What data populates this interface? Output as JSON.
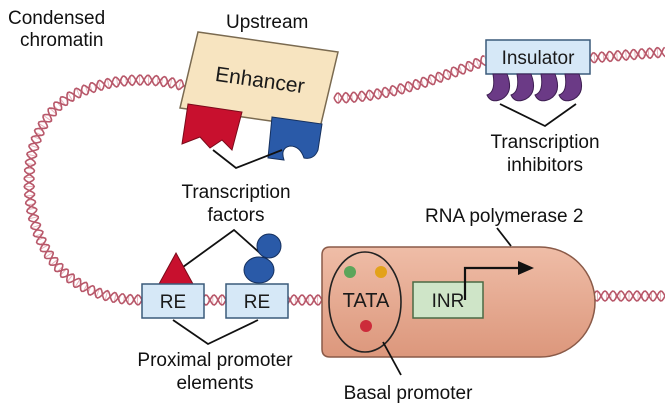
{
  "labels": {
    "condensed_chromatin_line1": "Condensed",
    "condensed_chromatin_line2": "chromatin",
    "upstream": "Upstream",
    "transcription_factors_line1": "Transcription",
    "transcription_factors_line2": "factors",
    "transcription_inhibitors_line1": "Transcription",
    "transcription_inhibitors_line2": "inhibitors",
    "rna_polymerase": "RNA polymerase 2",
    "proximal_promoter_line1": "Proximal promoter",
    "proximal_promoter_line2": "elements",
    "basal_promoter": "Basal promoter"
  },
  "boxes": {
    "enhancer": "Enhancer",
    "insulator": "Insulator",
    "re_left": "RE",
    "re_right": "RE",
    "tata": "TATA",
    "inr": "INR"
  },
  "colors": {
    "dna_strand": "#b8586a",
    "dna_rung": "#e8b3bc",
    "enhancer_fill": "#f7e4c0",
    "element_box_fill": "#d6e8f7",
    "inr_fill": "#cfe5c8",
    "polymerase_fill": "#e7a98f",
    "red_factor": "#c8102e",
    "blue_factor": "#2a5aa8",
    "inhibitor": "#6b3a86",
    "dot_green": "#5ca55a",
    "dot_orange": "#e3a21a",
    "dot_red": "#cc2b3a"
  }
}
